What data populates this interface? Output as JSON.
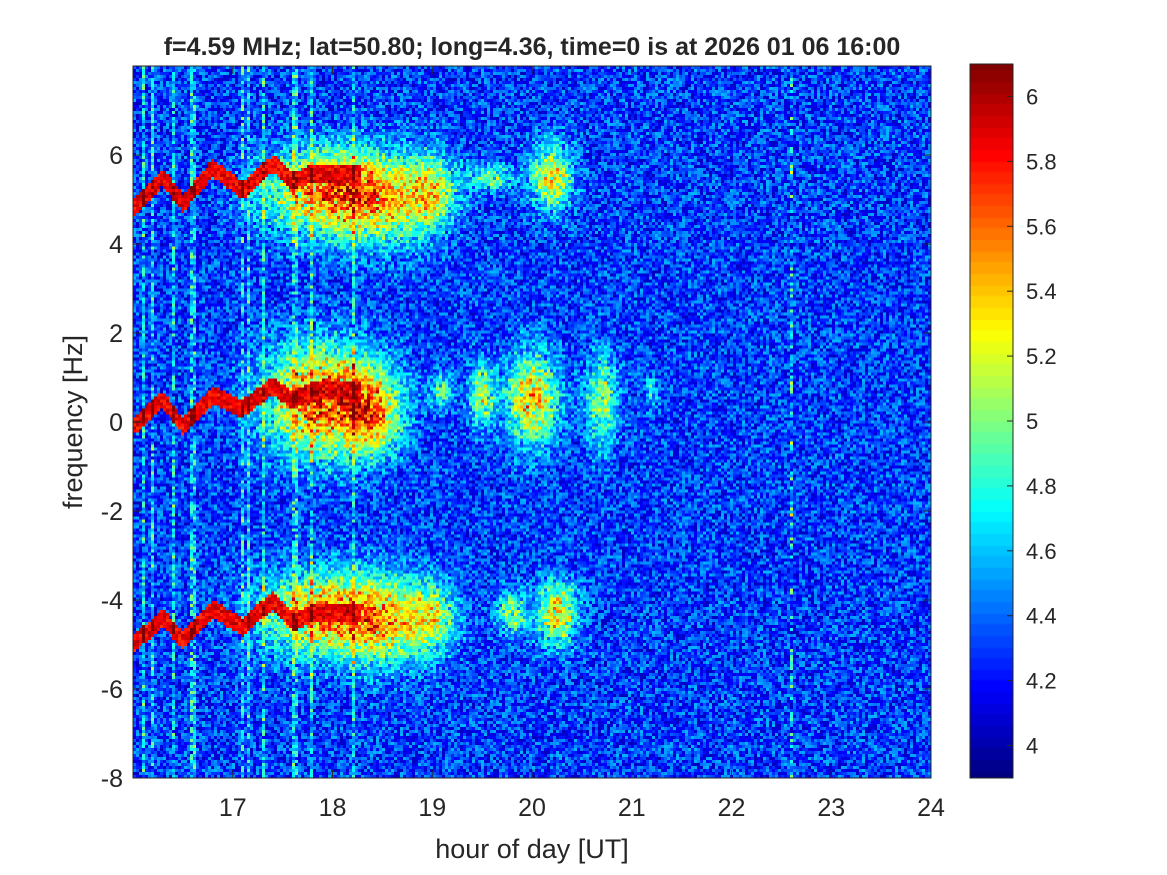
{
  "chart_data": {
    "type": "heatmap",
    "title": "f=4.59 MHz;  lat=50.80; long=4.36, time=0 is at 2026 01 06 16:00",
    "xlabel": "hour of day [UT]",
    "ylabel": "frequency [Hz]",
    "xlim": [
      16,
      24
    ],
    "ylim": [
      -8,
      8
    ],
    "x_ticks": [
      17,
      18,
      19,
      20,
      21,
      22,
      23,
      24
    ],
    "y_ticks": [
      -8,
      -6,
      -4,
      -2,
      0,
      2,
      4,
      6
    ],
    "colorbar": {
      "colormap": "jet",
      "clim": [
        3.9,
        6.1
      ],
      "ticks": [
        4,
        4.2,
        4.4,
        4.6,
        4.8,
        5,
        5.2,
        5.4,
        5.6,
        5.8,
        6
      ]
    },
    "background_level": 4.3,
    "features": [
      {
        "name": "direct-signal-trace",
        "x": [
          16.0,
          16.3,
          16.5,
          16.8,
          17.1,
          17.4,
          17.6,
          17.8
        ],
        "y": [
          -0.1,
          0.5,
          -0.1,
          0.6,
          0.3,
          0.8,
          0.5,
          0.7
        ],
        "value": 6.0
      },
      {
        "name": "upper-trace",
        "x": [
          16.0,
          16.3,
          16.5,
          16.8,
          17.1,
          17.4,
          17.6,
          17.8
        ],
        "y": [
          4.8,
          5.5,
          4.9,
          5.7,
          5.2,
          5.8,
          5.4,
          5.6
        ],
        "value": 6.0
      },
      {
        "name": "lower-trace",
        "x": [
          16.0,
          16.3,
          16.5,
          16.8,
          17.1,
          17.4,
          17.6,
          17.8
        ],
        "y": [
          -5.0,
          -4.4,
          -4.9,
          -4.2,
          -4.6,
          -4.0,
          -4.5,
          -4.3
        ],
        "value": 6.0
      }
    ]
  }
}
